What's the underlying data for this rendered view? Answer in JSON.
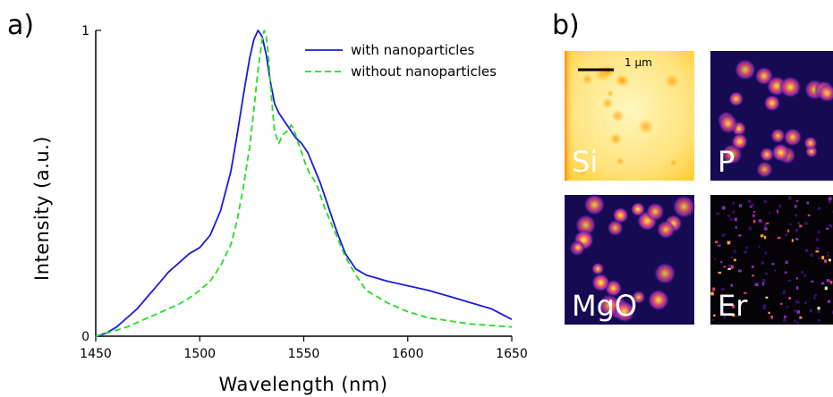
{
  "panels": {
    "a": "a)",
    "b": "b)"
  },
  "chart_data": {
    "type": "line",
    "title": "",
    "xlabel": "Wavelength (nm)",
    "ylabel": "Intensity (a.u.)",
    "xlim": [
      1450,
      1650
    ],
    "ylim": [
      0,
      1
    ],
    "xticks": [
      "1450",
      "1500",
      "1550",
      "1600",
      "1650"
    ],
    "yticks": [
      "0",
      "1"
    ],
    "grid": false,
    "legend_position": "top-right",
    "series": [
      {
        "name": "with nanoparticles",
        "color": "#1a1adb",
        "dash": "solid",
        "x": [
          1450,
          1455,
          1460,
          1465,
          1470,
          1475,
          1480,
          1485,
          1490,
          1495,
          1500,
          1505,
          1510,
          1515,
          1518,
          1521,
          1524,
          1526,
          1528,
          1530,
          1532,
          1534,
          1536,
          1538,
          1540,
          1543,
          1546,
          1549,
          1552,
          1555,
          1558,
          1562,
          1566,
          1570,
          1575,
          1580,
          1590,
          1600,
          1610,
          1620,
          1630,
          1640,
          1650
        ],
        "y": [
          0.0,
          0.01,
          0.03,
          0.06,
          0.09,
          0.13,
          0.17,
          0.21,
          0.24,
          0.27,
          0.29,
          0.33,
          0.41,
          0.54,
          0.66,
          0.79,
          0.91,
          0.97,
          1.0,
          0.98,
          0.92,
          0.83,
          0.76,
          0.73,
          0.71,
          0.68,
          0.65,
          0.63,
          0.6,
          0.55,
          0.5,
          0.42,
          0.34,
          0.27,
          0.22,
          0.2,
          0.18,
          0.165,
          0.15,
          0.13,
          0.11,
          0.09,
          0.055
        ]
      },
      {
        "name": "without nanoparticles",
        "color": "#22dd22",
        "dash": "dashed",
        "x": [
          1450,
          1455,
          1460,
          1465,
          1470,
          1475,
          1480,
          1485,
          1490,
          1495,
          1500,
          1505,
          1510,
          1515,
          1518,
          1521,
          1524,
          1526,
          1528,
          1530,
          1531,
          1532,
          1533,
          1534,
          1535,
          1536,
          1538,
          1540,
          1542,
          1544,
          1545,
          1547,
          1549,
          1551,
          1553,
          1556,
          1560,
          1565,
          1570,
          1575,
          1580,
          1590,
          1600,
          1610,
          1620,
          1630,
          1640,
          1650
        ],
        "y": [
          0.0,
          0.01,
          0.02,
          0.03,
          0.045,
          0.06,
          0.075,
          0.09,
          0.105,
          0.125,
          0.15,
          0.18,
          0.23,
          0.3,
          0.38,
          0.49,
          0.62,
          0.74,
          0.87,
          0.97,
          1.0,
          0.98,
          0.92,
          0.82,
          0.74,
          0.67,
          0.63,
          0.66,
          0.67,
          0.69,
          0.68,
          0.64,
          0.6,
          0.56,
          0.53,
          0.5,
          0.42,
          0.34,
          0.26,
          0.2,
          0.15,
          0.11,
          0.08,
          0.06,
          0.05,
          0.04,
          0.035,
          0.03
        ]
      }
    ]
  },
  "maps": [
    {
      "label": "Si",
      "scheme": "bright"
    },
    {
      "label": "P",
      "scheme": "dark"
    },
    {
      "label": "MgO",
      "scheme": "dark"
    },
    {
      "label": "Er",
      "scheme": "sparse"
    }
  ],
  "scale_bar": {
    "label": "1 μm"
  }
}
